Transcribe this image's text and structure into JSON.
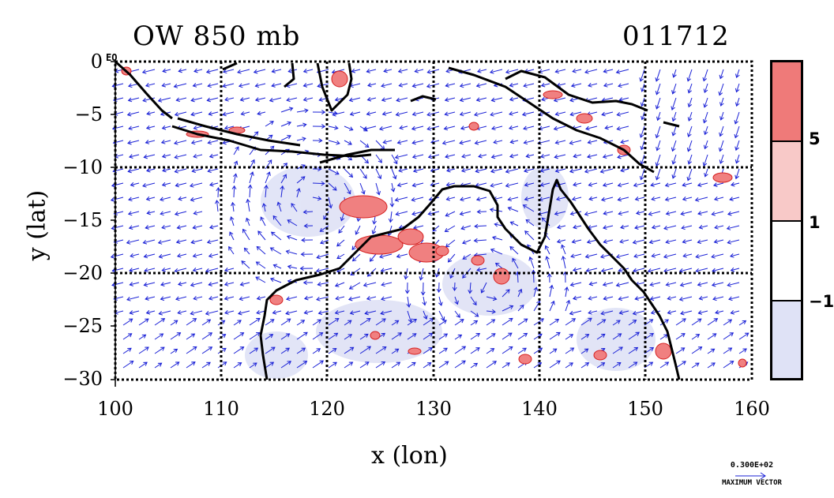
{
  "title_left": "OW 850 mb",
  "title_right": "011712",
  "eq_label": "EQ",
  "xaxis_label": "x (lon)",
  "yaxis_label": "y (lat)",
  "x_ticks": [
    "100",
    "110",
    "120",
    "130",
    "140",
    "150",
    "160"
  ],
  "y_ticks": [
    "0",
    "−5",
    "−10",
    "−15",
    "−20",
    "−25",
    "−30"
  ],
  "legend": {
    "labels": [
      "5",
      "1",
      "−1"
    ],
    "colors": [
      "#ef7a79",
      "#f8c9c8",
      "#ffffff",
      "#dfe2f6"
    ]
  },
  "max_vector": {
    "value": "0.300E+02",
    "label": "MAXIMUM VECTOR"
  },
  "colors": {
    "wind_vectors": "#1a21d6",
    "positive_fill": "#f08080",
    "coast": "#000000"
  }
}
